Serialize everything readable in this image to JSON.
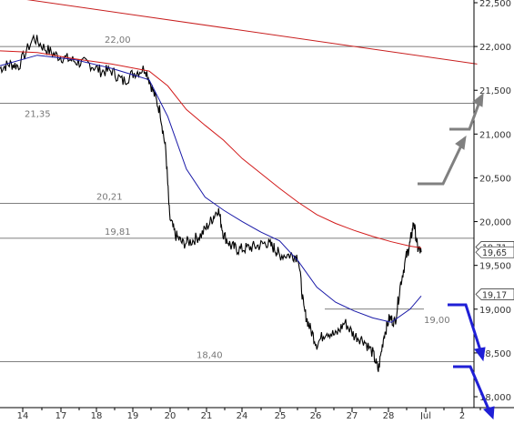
{
  "chart_data": {
    "type": "line",
    "ylim": [
      17.8,
      22.6
    ],
    "y_ticks": [
      "22,500",
      "22,000",
      "21,500",
      "21,000",
      "20,500",
      "20,000",
      "19,500",
      "19,000",
      "18,500",
      "18,000"
    ],
    "y_tick_values": [
      22.5,
      22.0,
      21.5,
      21.0,
      20.5,
      20.0,
      19.5,
      19.0,
      18.5,
      18.0
    ],
    "x_ticks": [
      "14",
      "17",
      "18",
      "19",
      "20",
      "21",
      "24",
      "25",
      "26",
      "27",
      "28",
      "Jul",
      "2"
    ],
    "horizontal_levels": [
      {
        "value": 22.0,
        "label": "22,00"
      },
      {
        "value": 21.35,
        "label": "21,35"
      },
      {
        "value": 20.21,
        "label": "20,21"
      },
      {
        "value": 19.81,
        "label": "19,81"
      },
      {
        "value": 18.4,
        "label": "18,40"
      },
      {
        "value": 19.0,
        "label": "19,00"
      }
    ],
    "price_badges": [
      {
        "value": 19.71,
        "label": "19,71"
      },
      {
        "value": 19.65,
        "label": "19,65"
      },
      {
        "value": 19.17,
        "label": "19,17"
      }
    ],
    "series": [
      {
        "name": "",
        "color": "#000000",
        "kind": "price",
        "points": [
          [
            0,
            21.75
          ],
          [
            0.5,
            21.8
          ],
          [
            1,
            21.78
          ],
          [
            1.8,
            22.1
          ],
          [
            2.4,
            21.98
          ],
          [
            3,
            21.9
          ],
          [
            3.6,
            21.86
          ],
          [
            4.2,
            21.82
          ],
          [
            4.8,
            21.8
          ],
          [
            5.4,
            21.72
          ],
          [
            6,
            21.72
          ],
          [
            6.6,
            21.6
          ],
          [
            7.2,
            21.7
          ],
          [
            7.8,
            21.75
          ],
          [
            8.2,
            21.5
          ],
          [
            8.6,
            21.25
          ],
          [
            8.9,
            20.8
          ],
          [
            9.1,
            20.05
          ],
          [
            9.4,
            19.85
          ],
          [
            9.8,
            19.75
          ],
          [
            10.3,
            19.78
          ],
          [
            10.8,
            19.85
          ],
          [
            11.3,
            20.0
          ],
          [
            11.7,
            20.15
          ],
          [
            12.0,
            19.85
          ],
          [
            12.4,
            19.72
          ],
          [
            12.8,
            19.68
          ],
          [
            13.3,
            19.7
          ],
          [
            13.8,
            19.72
          ],
          [
            14.3,
            19.76
          ],
          [
            14.7,
            19.7
          ],
          [
            15.0,
            19.62
          ],
          [
            15.6,
            19.62
          ],
          [
            16.0,
            19.6
          ],
          [
            16.3,
            19.0
          ],
          [
            16.6,
            18.8
          ],
          [
            17.0,
            18.6
          ],
          [
            17.5,
            18.75
          ],
          [
            18.0,
            18.7
          ],
          [
            18.5,
            18.85
          ],
          [
            19.0,
            18.7
          ],
          [
            19.5,
            18.65
          ],
          [
            20.0,
            18.5
          ],
          [
            20.3,
            18.3
          ],
          [
            20.6,
            18.7
          ],
          [
            20.9,
            18.9
          ],
          [
            21.2,
            18.85
          ],
          [
            21.5,
            19.3
          ],
          [
            21.8,
            19.6
          ],
          [
            22.0,
            19.75
          ],
          [
            22.2,
            20.0
          ],
          [
            22.4,
            19.7
          ],
          [
            22.6,
            19.65
          ]
        ]
      },
      {
        "name": "",
        "color": "#1a1aa8",
        "kind": "ma-fast",
        "points": [
          [
            0,
            21.78
          ],
          [
            2,
            21.9
          ],
          [
            4,
            21.85
          ],
          [
            6,
            21.75
          ],
          [
            8,
            21.62
          ],
          [
            9,
            21.2
          ],
          [
            10,
            20.6
          ],
          [
            11,
            20.28
          ],
          [
            12,
            20.13
          ],
          [
            13,
            20.0
          ],
          [
            14,
            19.88
          ],
          [
            15,
            19.78
          ],
          [
            16,
            19.55
          ],
          [
            17,
            19.25
          ],
          [
            18,
            19.08
          ],
          [
            19,
            18.98
          ],
          [
            20,
            18.9
          ],
          [
            21,
            18.85
          ],
          [
            22,
            19.0
          ],
          [
            22.6,
            19.15
          ]
        ]
      },
      {
        "name": "",
        "color": "#d21a1a",
        "kind": "ma-slow",
        "points": [
          [
            0,
            21.95
          ],
          [
            2,
            21.93
          ],
          [
            4,
            21.86
          ],
          [
            6,
            21.8
          ],
          [
            8,
            21.72
          ],
          [
            9,
            21.55
          ],
          [
            10,
            21.28
          ],
          [
            11,
            21.1
          ],
          [
            12,
            20.93
          ],
          [
            13,
            20.72
          ],
          [
            14,
            20.55
          ],
          [
            15,
            20.38
          ],
          [
            16,
            20.22
          ],
          [
            17,
            20.08
          ],
          [
            18,
            19.98
          ],
          [
            19,
            19.9
          ],
          [
            20,
            19.83
          ],
          [
            21,
            19.77
          ],
          [
            22,
            19.72
          ],
          [
            22.6,
            19.7
          ]
        ]
      },
      {
        "name": "",
        "color": "#c81e1e",
        "kind": "trendline",
        "points": [
          [
            0,
            22.58
          ],
          [
            25.6,
            21.8
          ]
        ]
      }
    ]
  }
}
